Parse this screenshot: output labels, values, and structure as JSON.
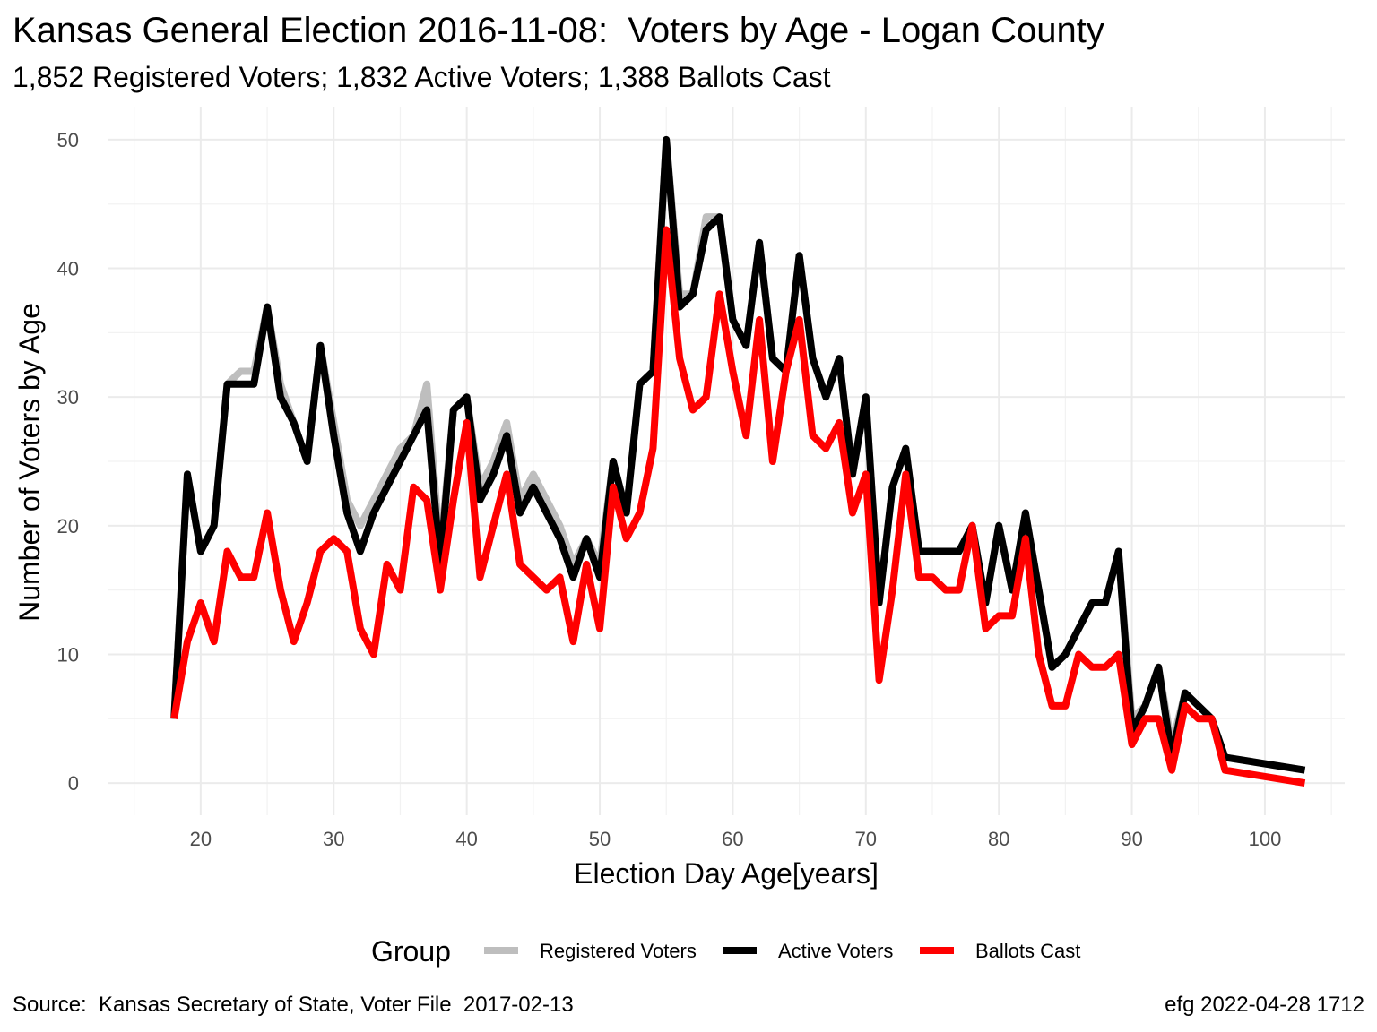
{
  "chart_data": {
    "type": "line",
    "title": "Kansas General Election 2016-11-08:  Voters by Age - Logan County",
    "subtitle": "1,852 Registered Voters; 1,832 Active Voters; 1,388 Ballots Cast",
    "xlabel": "Election Day Age[years]",
    "ylabel": "Number of Voters by Age",
    "xlim": [
      13,
      106
    ],
    "ylim": [
      -2.5,
      52.5
    ],
    "xticks": [
      20,
      30,
      40,
      50,
      60,
      70,
      80,
      90,
      100
    ],
    "yticks": [
      0,
      10,
      20,
      30,
      40,
      50
    ],
    "grid": true,
    "legend_title": "Group",
    "legend_position": "bottom",
    "x": [
      18,
      19,
      20,
      21,
      22,
      23,
      24,
      25,
      26,
      27,
      28,
      29,
      30,
      31,
      32,
      33,
      34,
      35,
      36,
      37,
      38,
      39,
      40,
      41,
      42,
      43,
      44,
      45,
      46,
      47,
      48,
      49,
      50,
      51,
      52,
      53,
      54,
      55,
      56,
      57,
      58,
      59,
      60,
      61,
      62,
      63,
      64,
      65,
      66,
      67,
      68,
      69,
      70,
      71,
      72,
      73,
      74,
      75,
      76,
      77,
      78,
      79,
      80,
      81,
      82,
      83,
      84,
      85,
      86,
      87,
      88,
      89,
      90,
      91,
      92,
      93,
      94,
      95,
      96,
      97,
      103
    ],
    "series": [
      {
        "name": "Registered Voters",
        "color": "#bebebe",
        "values": [
          5,
          24,
          18,
          20,
          31,
          32,
          32,
          37,
          31,
          28,
          25,
          34,
          28,
          22,
          20,
          22,
          24,
          26,
          27,
          31,
          18,
          29,
          30,
          23,
          25,
          28,
          22,
          24,
          22,
          20,
          17,
          19,
          17,
          25,
          21,
          31,
          32,
          50,
          38,
          38,
          44,
          44,
          36,
          34,
          42,
          33,
          32,
          41,
          33,
          30,
          33,
          24,
          30,
          14,
          23,
          26,
          18,
          18,
          18,
          18,
          20,
          14,
          20,
          15,
          21,
          15,
          9,
          10,
          12,
          14,
          14,
          18,
          5,
          6,
          9,
          3,
          7,
          6,
          5,
          2,
          1
        ]
      },
      {
        "name": "Active Voters",
        "color": "#000000",
        "values": [
          5,
          24,
          18,
          20,
          31,
          31,
          31,
          37,
          30,
          28,
          25,
          34,
          27,
          21,
          18,
          21,
          23,
          25,
          27,
          29,
          17,
          29,
          30,
          22,
          24,
          27,
          21,
          23,
          21,
          19,
          16,
          19,
          16,
          25,
          21,
          31,
          32,
          50,
          37,
          38,
          43,
          44,
          36,
          34,
          42,
          33,
          32,
          41,
          33,
          30,
          33,
          24,
          30,
          14,
          23,
          26,
          18,
          18,
          18,
          18,
          20,
          14,
          20,
          15,
          21,
          15,
          9,
          10,
          12,
          14,
          14,
          18,
          4,
          6,
          9,
          2,
          7,
          6,
          5,
          2,
          1
        ]
      },
      {
        "name": "Ballots Cast",
        "color": "#ff0000",
        "values": [
          5,
          11,
          14,
          11,
          18,
          16,
          16,
          21,
          15,
          11,
          14,
          18,
          19,
          18,
          12,
          10,
          17,
          15,
          23,
          22,
          15,
          22,
          28,
          16,
          20,
          24,
          17,
          16,
          15,
          16,
          11,
          17,
          12,
          23,
          19,
          21,
          26,
          43,
          33,
          29,
          30,
          38,
          32,
          27,
          36,
          25,
          32,
          36,
          27,
          26,
          28,
          21,
          24,
          8,
          15,
          24,
          16,
          16,
          15,
          15,
          20,
          12,
          13,
          13,
          19,
          10,
          6,
          6,
          10,
          9,
          9,
          10,
          3,
          5,
          5,
          1,
          6,
          5,
          5,
          1,
          0
        ]
      }
    ]
  },
  "caption": {
    "left": "Source:  Kansas Secretary of State, Voter File  2017-02-13",
    "right": "efg 2022-04-28 1712"
  }
}
